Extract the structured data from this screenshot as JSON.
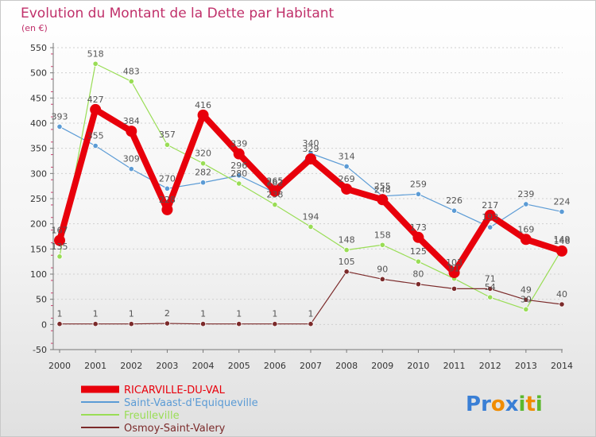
{
  "chart_data": {
    "type": "line",
    "title": "Evolution du Montant de la Dette par Habitant",
    "subtitle": "(en €)",
    "xlabel": "",
    "ylabel": "",
    "categories": [
      "2000",
      "2001",
      "2002",
      "2003",
      "2004",
      "2005",
      "2006",
      "2007",
      "2008",
      "2009",
      "2010",
      "2011",
      "2012",
      "2013",
      "2014"
    ],
    "ylim": [
      -50,
      550
    ],
    "yticks": [
      -50,
      0,
      50,
      100,
      150,
      200,
      250,
      300,
      350,
      400,
      450,
      500,
      550
    ],
    "grid": "horizontal-dotted",
    "legend_position": "bottom-left",
    "series": [
      {
        "name": "RICARVILLE-DU-VAL",
        "color": "#e8000b",
        "values": [
          167,
          427,
          384,
          228,
          416,
          339,
          265,
          329,
          269,
          248,
          173,
          103,
          217,
          169,
          146
        ],
        "labels": [
          "167",
          "427",
          "384",
          "228",
          "416",
          "339",
          "265",
          "329",
          "269",
          "248",
          "173",
          "103",
          "217",
          "169",
          "146"
        ]
      },
      {
        "name": "Saint-Vaast-d'Equiqueville",
        "color": "#5b9bd5",
        "values": [
          393,
          355,
          309,
          270,
          282,
          296,
          262,
          340,
          314,
          255,
          259,
          226,
          193,
          239,
          224
        ],
        "labels": [
          "393",
          "355",
          "309",
          "270",
          "282",
          "296",
          "262",
          "340",
          "314",
          "255",
          "259",
          "226",
          "193",
          "239",
          "224"
        ]
      },
      {
        "name": "Freulleville",
        "color": "#99dd55",
        "values": [
          135,
          518,
          483,
          357,
          320,
          280,
          238,
          194,
          148,
          158,
          125,
          91,
          54,
          30,
          149
        ],
        "labels": [
          "135",
          "518",
          "483",
          "357",
          "320",
          "280",
          "238",
          "194",
          "148",
          "158",
          "125",
          "91",
          "54",
          "30",
          "149"
        ]
      },
      {
        "name": "Osmoy-Saint-Valery",
        "color": "#7b2a2a",
        "values": [
          1,
          1,
          1,
          2,
          1,
          1,
          1,
          1,
          105,
          90,
          80,
          71,
          71,
          49,
          40
        ],
        "labels": [
          "1",
          "1",
          "1",
          "2",
          "1",
          "1",
          "1",
          "1",
          "105",
          "90",
          "80",
          "",
          "71",
          "49",
          "40"
        ]
      }
    ]
  },
  "logo": {
    "text": "Proxiti",
    "letters": [
      "P",
      "r",
      "o",
      "x",
      "i",
      "t",
      "i"
    ],
    "colors": [
      "#3a7fd5",
      "#3a7fd5",
      "#f08c00",
      "#3a7fd5",
      "#5cb82e",
      "#f08c00",
      "#5cb82e"
    ]
  }
}
